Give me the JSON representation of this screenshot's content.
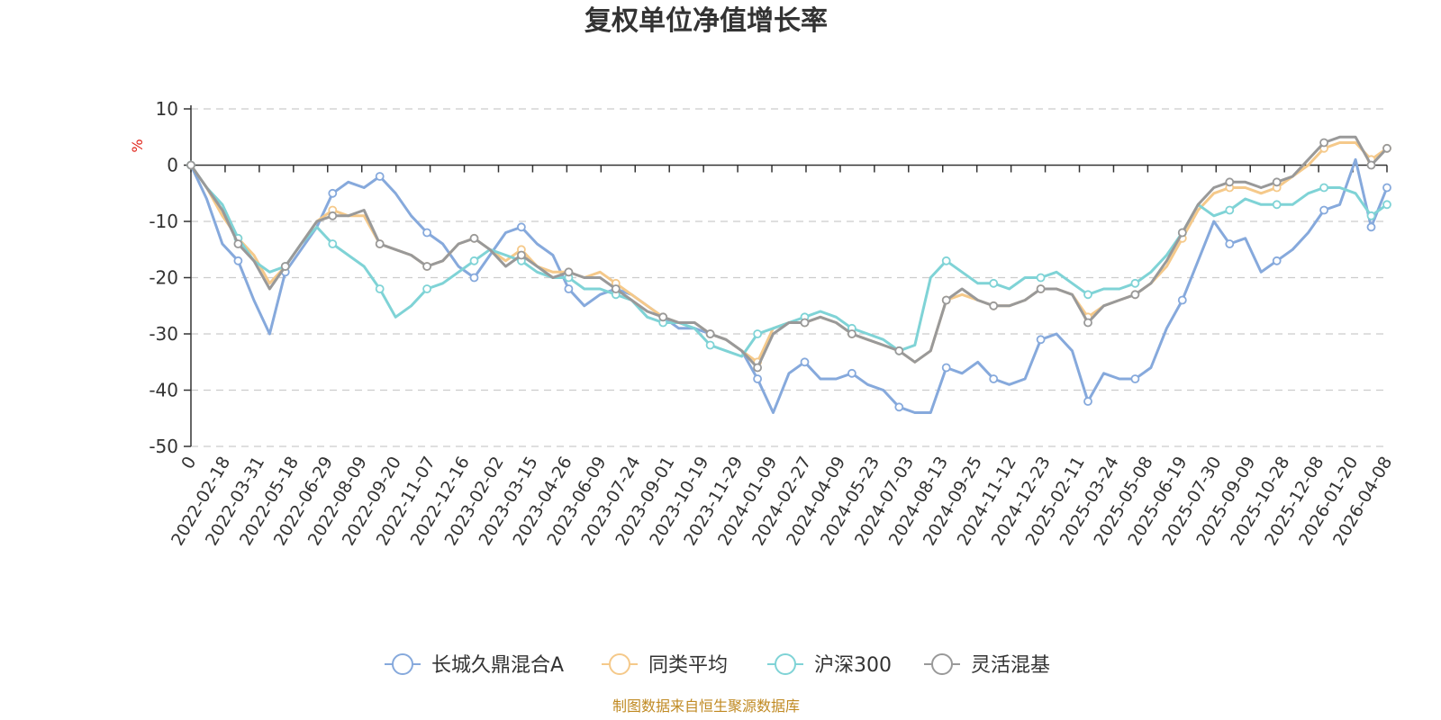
{
  "chart_data": {
    "type": "line",
    "title": "复权单位净值增长率",
    "ylabel": "%",
    "ylim": [
      -50,
      10
    ],
    "yticks": [
      "10",
      "0",
      "-10",
      "-20",
      "-30",
      "-40",
      "-50"
    ],
    "ytick_values": [
      10,
      0,
      -10,
      -20,
      -30,
      -40,
      -50
    ],
    "x_tick_labels": [
      "0",
      "2022-02-18",
      "2022-03-31",
      "2022-05-18",
      "2022-06-29",
      "2022-08-09",
      "2022-09-20",
      "2022-11-07",
      "2022-12-16",
      "2023-02-02",
      "2023-03-15",
      "2023-04-26",
      "2023-06-09",
      "2023-07-24",
      "2023-09-01",
      "2023-10-19",
      "2023-11-29",
      "2024-01-09",
      "2024-02-27",
      "2024-04-09",
      "2024-05-23",
      "2024-07-03",
      "2024-08-13",
      "2024-09-25",
      "2024-11-12",
      "2024-12-23",
      "2025-02-11",
      "2025-03-24",
      "2025-05-08",
      "2025-06-19",
      "2025-07-30",
      "2025-09-09",
      "2025-10-28",
      "2025-12-08",
      "2026-01-20",
      "2026-04-08"
    ],
    "grid": "horizontal-dashed",
    "legend_position": "bottom-center",
    "series": [
      {
        "name": "长城久鼎混合A",
        "color": "#86a9dc",
        "values": [
          0,
          -6,
          -14,
          -17,
          -24,
          -30,
          -19,
          -15,
          -11,
          -5,
          -3,
          -4,
          -2,
          -5,
          -9,
          -12,
          -14,
          -18,
          -20,
          -16,
          -12,
          -11,
          -14,
          -16,
          -22,
          -25,
          -23,
          -22,
          -23,
          -25,
          -27,
          -29,
          -29,
          -30,
          -31,
          -33,
          -38,
          -44,
          -37,
          -35,
          -38,
          -38,
          -37,
          -39,
          -40,
          -43,
          -44,
          -44,
          -36,
          -37,
          -35,
          -38,
          -39,
          -38,
          -31,
          -30,
          -33,
          -42,
          -37,
          -38,
          -38,
          -36,
          -29,
          -24,
          -17,
          -10,
          -14,
          -13,
          -19,
          -17,
          -15,
          -12,
          -8,
          -7,
          1,
          -11,
          -4
        ]
      },
      {
        "name": "同类平均",
        "color": "#f5c98a",
        "values": [
          0,
          -4,
          -9,
          -13,
          -16,
          -21,
          -18,
          -14,
          -10,
          -8,
          -9,
          -9,
          -14,
          -15,
          -16,
          -18,
          -17,
          -14,
          -13,
          -15,
          -17,
          -15,
          -18,
          -19,
          -19,
          -20,
          -19,
          -21,
          -23,
          -25,
          -27,
          -28,
          -28,
          -30,
          -31,
          -33,
          -35,
          -29,
          -28,
          -28,
          -27,
          -28,
          -30,
          -31,
          -32,
          -33,
          -35,
          -33,
          -24,
          -23,
          -24,
          -25,
          -25,
          -24,
          -22,
          -22,
          -23,
          -27,
          -25,
          -24,
          -23,
          -21,
          -18,
          -13,
          -8,
          -5,
          -4,
          -4,
          -5,
          -4,
          -2,
          0,
          3,
          4,
          4,
          1,
          3
        ]
      },
      {
        "name": "沪深300",
        "color": "#7fd3d6",
        "values": [
          0,
          -4,
          -7,
          -13,
          -17,
          -19,
          -18,
          -14,
          -11,
          -14,
          -16,
          -18,
          -22,
          -27,
          -25,
          -22,
          -21,
          -19,
          -17,
          -15,
          -16,
          -17,
          -19,
          -20,
          -20,
          -22,
          -22,
          -23,
          -24,
          -27,
          -28,
          -28,
          -29,
          -32,
          -33,
          -34,
          -30,
          -29,
          -28,
          -27,
          -26,
          -27,
          -29,
          -30,
          -31,
          -33,
          -32,
          -20,
          -17,
          -19,
          -21,
          -21,
          -22,
          -20,
          -20,
          -19,
          -21,
          -23,
          -22,
          -22,
          -21,
          -19,
          -16,
          -12,
          -7,
          -9,
          -8,
          -6,
          -7,
          -7,
          -7,
          -5,
          -4,
          -4,
          -5,
          -9,
          -7
        ]
      },
      {
        "name": "灵活混基",
        "color": "#999999",
        "values": [
          0,
          -4,
          -8,
          -14,
          -17,
          -22,
          -18,
          -14,
          -10,
          -9,
          -9,
          -8,
          -14,
          -15,
          -16,
          -18,
          -17,
          -14,
          -13,
          -15,
          -18,
          -16,
          -18,
          -20,
          -19,
          -20,
          -20,
          -22,
          -24,
          -26,
          -27,
          -28,
          -28,
          -30,
          -31,
          -33,
          -36,
          -30,
          -28,
          -28,
          -27,
          -28,
          -30,
          -31,
          -32,
          -33,
          -35,
          -33,
          -24,
          -22,
          -24,
          -25,
          -25,
          -24,
          -22,
          -22,
          -23,
          -28,
          -25,
          -24,
          -23,
          -21,
          -17,
          -12,
          -7,
          -4,
          -3,
          -3,
          -4,
          -3,
          -2,
          1,
          4,
          5,
          5,
          0,
          3
        ]
      }
    ]
  },
  "source_note": "制图数据来自恒生聚源数据库"
}
